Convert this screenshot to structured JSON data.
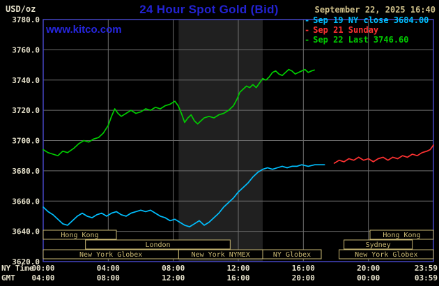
{
  "header": {
    "unit": "USD/oz",
    "title": "24 Hour Spot Gold (Bid)",
    "datetime": "September 22, 2025 16:40",
    "watermark": "www.kitco.com"
  },
  "legend": [
    {
      "marker": "-",
      "label": "Sep 19 NY close 3684.00",
      "color": "#00bfff"
    },
    {
      "marker": "-",
      "label": "Sep 21 Sunday",
      "color": "#ff3232"
    },
    {
      "marker": "-",
      "label": "Sep 22 Last 3746.60",
      "color": "#00cc00"
    }
  ],
  "colors": {
    "background": "#000000",
    "title_blue": "#2323d2",
    "watermark_blue": "#2626e0",
    "date_tan": "#cfc08a",
    "axis_text": "#e6e1cb",
    "session_tan": "#c9b873",
    "grid": "#6f6f6f",
    "border": "#4646c4",
    "band": "#202020",
    "sep19_cyan": "#00bfff",
    "sep21_red": "#ff3232",
    "sep22_green": "#00cc00"
  },
  "chart_data": {
    "type": "line",
    "title": "24 Hour Spot Gold (Bid)",
    "ylabel": "USD/oz",
    "grid": true,
    "x": {
      "min": 0,
      "max": 24,
      "tick_positions": [
        0,
        4,
        8,
        12,
        16,
        20,
        24
      ],
      "tick_labels_ny": [
        "00:00",
        "04:00",
        "08:00",
        "12:00",
        "16:00",
        "20:00",
        "23:59"
      ],
      "tick_labels_gmt": [
        "04:00",
        "08:00",
        "12:00",
        "16:00",
        "20:00",
        "00:00",
        "03:59"
      ]
    },
    "y": {
      "min": 3620,
      "max": 3780,
      "step": 20
    },
    "ylim": [
      3620,
      3780
    ],
    "row_labels": {
      "ny": "NY Time",
      "gmt": "GMT"
    },
    "band": {
      "name": "nymex-floor-session-band",
      "start": 8.33,
      "end": 13.5
    },
    "series": [
      {
        "id": "sep19",
        "name": "Sep 19 NY close",
        "close": 3684.0,
        "color": "#00bfff",
        "points": [
          [
            0,
            3656
          ],
          [
            0.3,
            3653
          ],
          [
            0.6,
            3651
          ],
          [
            0.9,
            3648
          ],
          [
            1.2,
            3645
          ],
          [
            1.5,
            3644
          ],
          [
            1.8,
            3647
          ],
          [
            2.1,
            3650
          ],
          [
            2.4,
            3652
          ],
          [
            2.7,
            3650
          ],
          [
            3.0,
            3649
          ],
          [
            3.3,
            3651
          ],
          [
            3.6,
            3652
          ],
          [
            3.9,
            3650
          ],
          [
            4.2,
            3652
          ],
          [
            4.5,
            3653
          ],
          [
            4.8,
            3651
          ],
          [
            5.1,
            3650
          ],
          [
            5.4,
            3652
          ],
          [
            5.7,
            3653
          ],
          [
            6.0,
            3654
          ],
          [
            6.3,
            3653
          ],
          [
            6.6,
            3654
          ],
          [
            6.9,
            3652
          ],
          [
            7.2,
            3650
          ],
          [
            7.5,
            3649
          ],
          [
            7.8,
            3647
          ],
          [
            8.1,
            3648
          ],
          [
            8.4,
            3646
          ],
          [
            8.7,
            3644
          ],
          [
            9.0,
            3643
          ],
          [
            9.3,
            3645
          ],
          [
            9.6,
            3647
          ],
          [
            9.9,
            3644
          ],
          [
            10.2,
            3646
          ],
          [
            10.5,
            3649
          ],
          [
            10.8,
            3652
          ],
          [
            11.1,
            3656
          ],
          [
            11.4,
            3659
          ],
          [
            11.7,
            3662
          ],
          [
            12.0,
            3666
          ],
          [
            12.3,
            3669
          ],
          [
            12.6,
            3672
          ],
          [
            12.9,
            3676
          ],
          [
            13.2,
            3679
          ],
          [
            13.5,
            3681
          ],
          [
            13.8,
            3682
          ],
          [
            14.1,
            3681
          ],
          [
            14.4,
            3682
          ],
          [
            14.7,
            3683
          ],
          [
            15.0,
            3682
          ],
          [
            15.3,
            3683
          ],
          [
            15.6,
            3683
          ],
          [
            15.9,
            3684
          ],
          [
            16.3,
            3683
          ],
          [
            16.7,
            3684
          ],
          [
            17.3,
            3684
          ]
        ]
      },
      {
        "id": "sep21",
        "name": "Sep 21 Sunday",
        "color": "#ff3232",
        "points": [
          [
            17.9,
            3685
          ],
          [
            18.2,
            3687
          ],
          [
            18.5,
            3686
          ],
          [
            18.8,
            3688
          ],
          [
            19.1,
            3687
          ],
          [
            19.4,
            3689
          ],
          [
            19.7,
            3687
          ],
          [
            20.0,
            3688
          ],
          [
            20.3,
            3686
          ],
          [
            20.6,
            3688
          ],
          [
            20.9,
            3689
          ],
          [
            21.2,
            3687
          ],
          [
            21.5,
            3689
          ],
          [
            21.8,
            3688
          ],
          [
            22.1,
            3690
          ],
          [
            22.4,
            3689
          ],
          [
            22.7,
            3691
          ],
          [
            23.0,
            3690
          ],
          [
            23.3,
            3692
          ],
          [
            23.6,
            3693
          ],
          [
            23.8,
            3694
          ],
          [
            24.0,
            3697
          ]
        ]
      },
      {
        "id": "sep22",
        "name": "Sep 22",
        "last": 3746.6,
        "color": "#00cc00",
        "points": [
          [
            0,
            3694
          ],
          [
            0.3,
            3692
          ],
          [
            0.6,
            3691
          ],
          [
            0.9,
            3690
          ],
          [
            1.2,
            3693
          ],
          [
            1.5,
            3692
          ],
          [
            1.9,
            3695
          ],
          [
            2.2,
            3698
          ],
          [
            2.5,
            3700
          ],
          [
            2.8,
            3699
          ],
          [
            3.1,
            3701
          ],
          [
            3.4,
            3702
          ],
          [
            3.7,
            3705
          ],
          [
            4.0,
            3710
          ],
          [
            4.2,
            3716
          ],
          [
            4.4,
            3721
          ],
          [
            4.6,
            3718
          ],
          [
            4.8,
            3716
          ],
          [
            5.1,
            3718
          ],
          [
            5.4,
            3720
          ],
          [
            5.7,
            3718
          ],
          [
            6.0,
            3719
          ],
          [
            6.3,
            3721
          ],
          [
            6.6,
            3720
          ],
          [
            6.9,
            3722
          ],
          [
            7.2,
            3721
          ],
          [
            7.5,
            3723
          ],
          [
            7.8,
            3724
          ],
          [
            8.1,
            3726
          ],
          [
            8.3,
            3723
          ],
          [
            8.5,
            3718
          ],
          [
            8.7,
            3712
          ],
          [
            8.9,
            3715
          ],
          [
            9.1,
            3717
          ],
          [
            9.3,
            3713
          ],
          [
            9.5,
            3711
          ],
          [
            9.7,
            3713
          ],
          [
            9.9,
            3715
          ],
          [
            10.2,
            3716
          ],
          [
            10.5,
            3715
          ],
          [
            10.8,
            3717
          ],
          [
            11.1,
            3718
          ],
          [
            11.4,
            3720
          ],
          [
            11.7,
            3723
          ],
          [
            11.9,
            3727
          ],
          [
            12.1,
            3732
          ],
          [
            12.3,
            3734
          ],
          [
            12.5,
            3736
          ],
          [
            12.7,
            3735
          ],
          [
            12.9,
            3737
          ],
          [
            13.1,
            3735
          ],
          [
            13.3,
            3738
          ],
          [
            13.5,
            3741
          ],
          [
            13.7,
            3740
          ],
          [
            13.9,
            3742
          ],
          [
            14.1,
            3745
          ],
          [
            14.3,
            3746
          ],
          [
            14.5,
            3744
          ],
          [
            14.7,
            3743
          ],
          [
            14.9,
            3745
          ],
          [
            15.1,
            3747
          ],
          [
            15.3,
            3746
          ],
          [
            15.5,
            3744
          ],
          [
            15.7,
            3745
          ],
          [
            15.9,
            3746
          ],
          [
            16.1,
            3747
          ],
          [
            16.3,
            3745
          ],
          [
            16.5,
            3746
          ],
          [
            16.67,
            3746.6
          ]
        ]
      }
    ],
    "sessions": [
      {
        "row": 0,
        "label": "Hong Kong",
        "start": 0,
        "end": 4.5
      },
      {
        "row": 0,
        "label": "Hong Kong",
        "start": 20.1,
        "end": 24
      },
      {
        "row": 1,
        "label": "London",
        "start": 2.6,
        "end": 11.5
      },
      {
        "row": 1,
        "label": "Sydney",
        "start": 18.5,
        "end": 22.7
      },
      {
        "row": 2,
        "label": "New York Globex",
        "start": 0,
        "end": 8.33
      },
      {
        "row": 2,
        "label": "New York NYMEX",
        "start": 8.33,
        "end": 13.5
      },
      {
        "row": 2,
        "label": "NY Globex",
        "start": 13.5,
        "end": 17.1
      },
      {
        "row": 2,
        "label": "New York Globex",
        "start": 18.2,
        "end": 24
      }
    ]
  }
}
